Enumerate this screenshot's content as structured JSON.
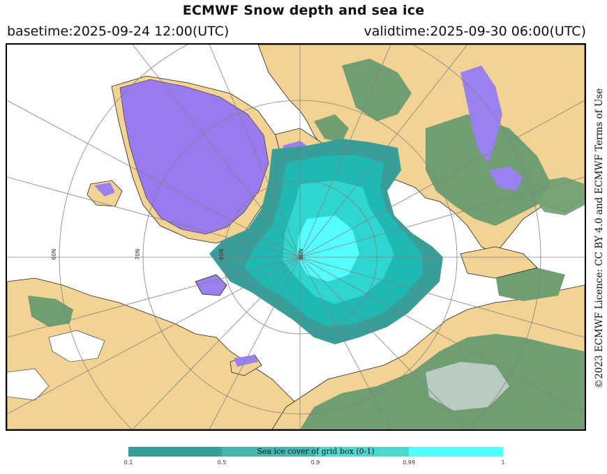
{
  "header": {
    "title": "ECMWF Snow depth and sea ice",
    "basetime": "basetime:2025-09-24 12:00(UTC)",
    "validtime": "validtime:2025-09-30 06:00(UTC)"
  },
  "licence": "©2023 ECMWF Licence: CC BY 4.0 and ECMWF Terms of Use",
  "map": {
    "projection": "polar stereographic (north pole centred)",
    "latitude_labels": [
      "60N",
      "70N",
      "80N",
      "90N"
    ],
    "colors": {
      "ocean": "#ffffff",
      "land": "#f3d393",
      "greenland_ice": "#9b7af0",
      "snow_patch": "#9b80f0",
      "vegetation": "#6e9e72",
      "grid": "#808080",
      "sea_ice_low": "#3a9e98",
      "sea_ice_mid": "#1fb8b3",
      "sea_ice_high": "#2fd6cf",
      "sea_ice_full": "#55ffff"
    }
  },
  "legend": {
    "label": "Sea ice cover of grid box (0-1)",
    "ticks": [
      "0.1",
      "0.5",
      "0.9",
      "0.99",
      "1"
    ],
    "colors": [
      "#3a9e98",
      "#46b5ae",
      "#4fd6cf",
      "#55ffff"
    ]
  }
}
